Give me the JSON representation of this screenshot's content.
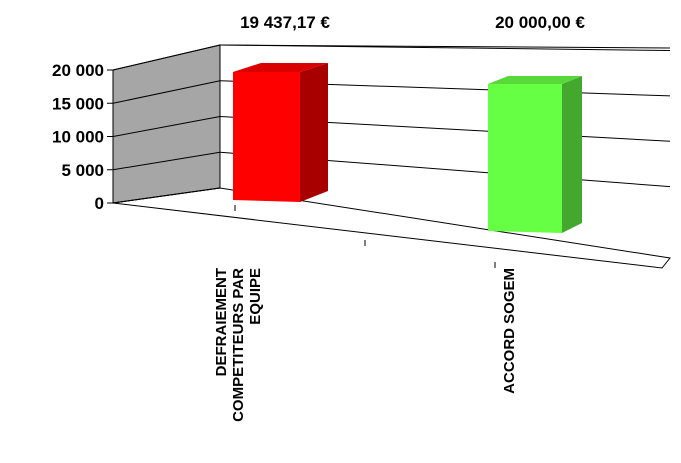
{
  "chart_data": {
    "type": "bar",
    "style": "3d-perspective",
    "categories": [
      [
        "DEFRAIEMENT",
        "COMPETITEURS PAR",
        "EQUIPE"
      ],
      [
        "ACCORD SOGEM"
      ]
    ],
    "values": [
      19437.17,
      20000.0
    ],
    "data_labels": [
      "19 437,17 €",
      "20 000,00 €"
    ],
    "bar_colors": [
      "#ff0000",
      "#66ff44"
    ],
    "y_ticks": [
      {
        "value": 0,
        "label": "0"
      },
      {
        "value": 5000,
        "label": "5 000"
      },
      {
        "value": 10000,
        "label": "10 000"
      },
      {
        "value": 15000,
        "label": "15 000"
      },
      {
        "value": 20000,
        "label": "20 000"
      }
    ],
    "ylim": [
      0,
      20000
    ],
    "grid": true,
    "legend": "none",
    "title": "",
    "xlabel": "",
    "ylabel": ""
  }
}
